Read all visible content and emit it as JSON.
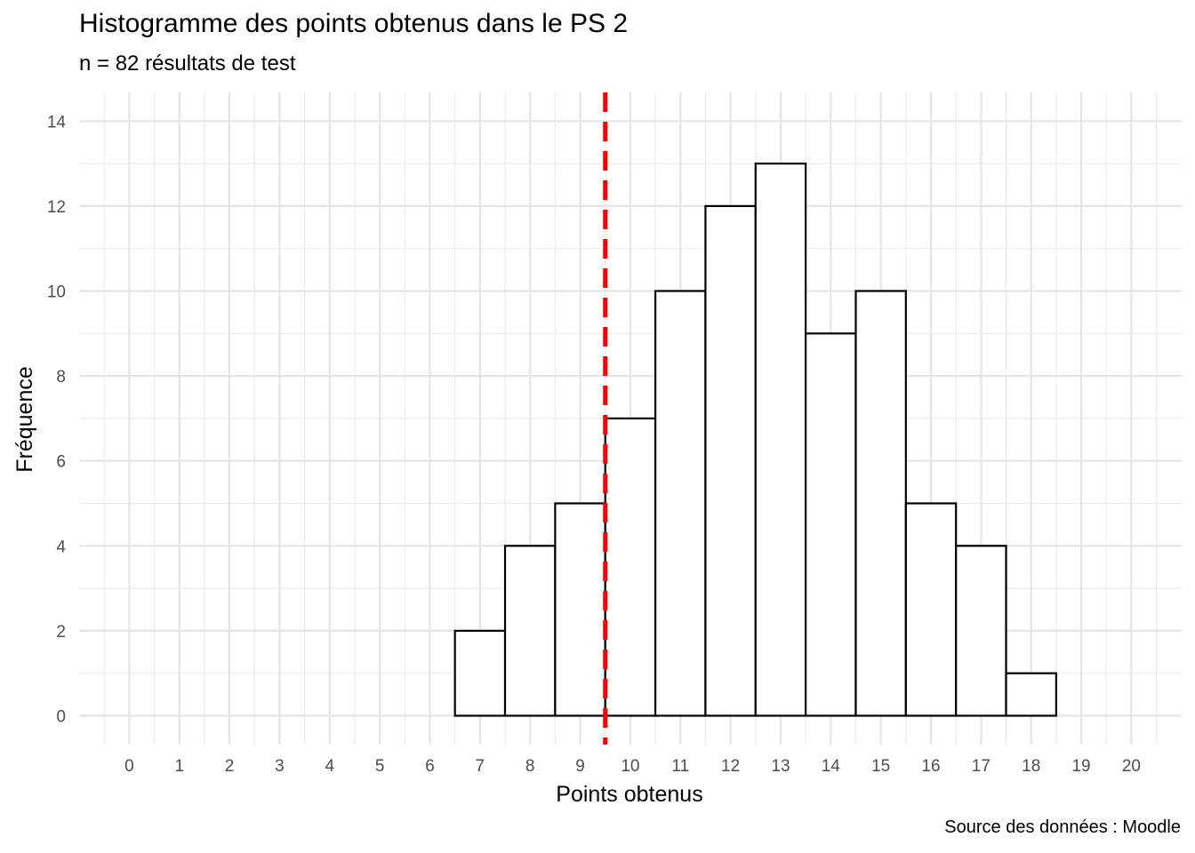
{
  "chart_data": {
    "type": "bar",
    "title": "Histogramme des points obtenus dans le PS 2",
    "subtitle": "n = 82 résultats de test",
    "caption": "Source des données : Moodle",
    "xlabel": "Points obtenus",
    "ylabel": "Fréquence",
    "x_ticks": [
      "0",
      "1",
      "2",
      "3",
      "4",
      "5",
      "6",
      "7",
      "8",
      "9",
      "10",
      "11",
      "12",
      "13",
      "14",
      "15",
      "16",
      "17",
      "18",
      "19",
      "20"
    ],
    "y_ticks": [
      "0",
      "2",
      "4",
      "6",
      "8",
      "10",
      "12",
      "14"
    ],
    "xlim": [
      -1,
      21
    ],
    "ylim": [
      0,
      14
    ],
    "bin_width": 1,
    "categories": [
      7,
      8,
      9,
      10,
      11,
      12,
      13,
      14,
      15,
      16,
      17,
      18
    ],
    "values": [
      2,
      4,
      5,
      7,
      10,
      12,
      13,
      9,
      10,
      5,
      4,
      1
    ],
    "reference_line": {
      "x": 9.5,
      "style": "dashed",
      "color": "#ff0000"
    },
    "bar_fill": "#ffffff",
    "bar_stroke": "#000000",
    "grid": true
  }
}
